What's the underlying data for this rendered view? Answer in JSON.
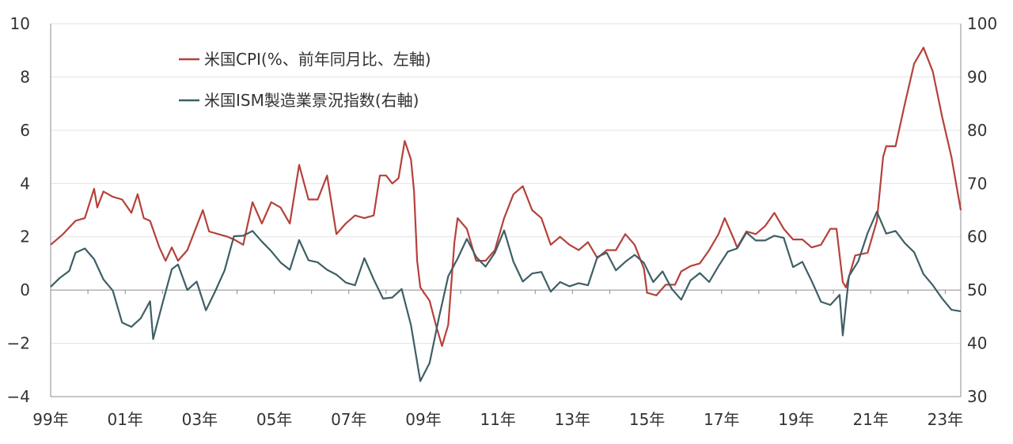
{
  "chart_data": {
    "type": "line",
    "x_start": "1999-01",
    "x_end": "2023-06",
    "x_tick_labels": [
      "99年",
      "01年",
      "03年",
      "05年",
      "07年",
      "09年",
      "11年",
      "13年",
      "15年",
      "17年",
      "19年",
      "21年",
      "23年"
    ],
    "x_tick_years": [
      1999,
      2001,
      2003,
      2005,
      2007,
      2009,
      2011,
      2013,
      2015,
      2017,
      2019,
      2021,
      2023
    ],
    "y_left": {
      "lim": [
        -4,
        10
      ],
      "ticks": [
        -4,
        -2,
        0,
        2,
        4,
        6,
        8,
        10
      ],
      "tick_labels": [
        "−4",
        "−2",
        "0",
        "2",
        "4",
        "6",
        "8",
        "10"
      ]
    },
    "y_right": {
      "lim": [
        30,
        100
      ],
      "ticks": [
        30,
        40,
        50,
        60,
        70,
        80,
        90,
        100
      ],
      "tick_labels": [
        "30",
        "40",
        "50",
        "60",
        "70",
        "80",
        "90",
        "100"
      ]
    },
    "grid": true,
    "legend_position": "top-left",
    "series": [
      {
        "name": "米国CPI(%、前年同月比、左軸)",
        "axis": "left",
        "color": "#b5413b",
        "points": [
          [
            "1999-01",
            1.7
          ],
          [
            "1999-05",
            2.1
          ],
          [
            "1999-09",
            2.6
          ],
          [
            "1999-12",
            2.7
          ],
          [
            "2000-03",
            3.8
          ],
          [
            "2000-04",
            3.1
          ],
          [
            "2000-06",
            3.7
          ],
          [
            "2000-09",
            3.5
          ],
          [
            "2000-12",
            3.4
          ],
          [
            "2001-03",
            2.9
          ],
          [
            "2001-05",
            3.6
          ],
          [
            "2001-07",
            2.7
          ],
          [
            "2001-09",
            2.6
          ],
          [
            "2001-12",
            1.6
          ],
          [
            "2002-02",
            1.1
          ],
          [
            "2002-04",
            1.6
          ],
          [
            "2002-06",
            1.1
          ],
          [
            "2002-09",
            1.5
          ],
          [
            "2002-12",
            2.4
          ],
          [
            "2003-02",
            3.0
          ],
          [
            "2003-04",
            2.2
          ],
          [
            "2003-07",
            2.1
          ],
          [
            "2003-10",
            2.0
          ],
          [
            "2003-12",
            1.9
          ],
          [
            "2004-03",
            1.7
          ],
          [
            "2004-06",
            3.3
          ],
          [
            "2004-09",
            2.5
          ],
          [
            "2004-12",
            3.3
          ],
          [
            "2005-03",
            3.1
          ],
          [
            "2005-06",
            2.5
          ],
          [
            "2005-09",
            4.7
          ],
          [
            "2005-12",
            3.4
          ],
          [
            "2006-03",
            3.4
          ],
          [
            "2006-06",
            4.3
          ],
          [
            "2006-09",
            2.1
          ],
          [
            "2006-12",
            2.5
          ],
          [
            "2007-03",
            2.8
          ],
          [
            "2007-06",
            2.7
          ],
          [
            "2007-09",
            2.8
          ],
          [
            "2007-11",
            4.3
          ],
          [
            "2008-01",
            4.3
          ],
          [
            "2008-03",
            4.0
          ],
          [
            "2008-05",
            4.2
          ],
          [
            "2008-07",
            5.6
          ],
          [
            "2008-09",
            4.9
          ],
          [
            "2008-10",
            3.7
          ],
          [
            "2008-11",
            1.1
          ],
          [
            "2008-12",
            0.1
          ],
          [
            "2009-03",
            -0.4
          ],
          [
            "2009-05",
            -1.3
          ],
          [
            "2009-07",
            -2.1
          ],
          [
            "2009-09",
            -1.3
          ],
          [
            "2009-11",
            1.8
          ],
          [
            "2009-12",
            2.7
          ],
          [
            "2010-03",
            2.3
          ],
          [
            "2010-06",
            1.1
          ],
          [
            "2010-09",
            1.1
          ],
          [
            "2010-12",
            1.5
          ],
          [
            "2011-03",
            2.7
          ],
          [
            "2011-06",
            3.6
          ],
          [
            "2011-09",
            3.9
          ],
          [
            "2011-12",
            3.0
          ],
          [
            "2012-03",
            2.7
          ],
          [
            "2012-06",
            1.7
          ],
          [
            "2012-09",
            2.0
          ],
          [
            "2012-12",
            1.7
          ],
          [
            "2013-03",
            1.5
          ],
          [
            "2013-06",
            1.8
          ],
          [
            "2013-09",
            1.2
          ],
          [
            "2013-12",
            1.5
          ],
          [
            "2014-03",
            1.5
          ],
          [
            "2014-06",
            2.1
          ],
          [
            "2014-09",
            1.7
          ],
          [
            "2014-12",
            0.8
          ],
          [
            "2015-01",
            -0.1
          ],
          [
            "2015-04",
            -0.2
          ],
          [
            "2015-07",
            0.2
          ],
          [
            "2015-10",
            0.2
          ],
          [
            "2015-12",
            0.7
          ],
          [
            "2016-03",
            0.9
          ],
          [
            "2016-06",
            1.0
          ],
          [
            "2016-09",
            1.5
          ],
          [
            "2016-12",
            2.1
          ],
          [
            "2017-02",
            2.7
          ],
          [
            "2017-05",
            1.9
          ],
          [
            "2017-06",
            1.6
          ],
          [
            "2017-09",
            2.2
          ],
          [
            "2017-12",
            2.1
          ],
          [
            "2018-03",
            2.4
          ],
          [
            "2018-06",
            2.9
          ],
          [
            "2018-09",
            2.3
          ],
          [
            "2018-12",
            1.9
          ],
          [
            "2019-03",
            1.9
          ],
          [
            "2019-06",
            1.6
          ],
          [
            "2019-09",
            1.7
          ],
          [
            "2019-12",
            2.3
          ],
          [
            "2020-02",
            2.3
          ],
          [
            "2020-04",
            0.3
          ],
          [
            "2020-05",
            0.1
          ],
          [
            "2020-08",
            1.3
          ],
          [
            "2020-12",
            1.4
          ],
          [
            "2021-03",
            2.6
          ],
          [
            "2021-05",
            5.0
          ],
          [
            "2021-06",
            5.4
          ],
          [
            "2021-09",
            5.4
          ],
          [
            "2021-12",
            7.0
          ],
          [
            "2022-03",
            8.5
          ],
          [
            "2022-06",
            9.1
          ],
          [
            "2022-09",
            8.2
          ],
          [
            "2022-12",
            6.5
          ],
          [
            "2023-03",
            5.0
          ],
          [
            "2023-06",
            3.0
          ]
        ]
      },
      {
        "name": "米国ISM製造業景況指数(右軸)",
        "axis": "right",
        "color": "#3e5f66",
        "points": [
          [
            "1999-01",
            50.6
          ],
          [
            "1999-04",
            52.3
          ],
          [
            "1999-07",
            53.6
          ],
          [
            "1999-09",
            57.0
          ],
          [
            "1999-12",
            57.8
          ],
          [
            "2000-03",
            55.8
          ],
          [
            "2000-06",
            52.0
          ],
          [
            "2000-09",
            49.9
          ],
          [
            "2000-12",
            43.9
          ],
          [
            "2001-03",
            43.1
          ],
          [
            "2001-06",
            44.7
          ],
          [
            "2001-09",
            47.9
          ],
          [
            "2001-10",
            40.8
          ],
          [
            "2002-01",
            47.5
          ],
          [
            "2002-04",
            53.9
          ],
          [
            "2002-06",
            54.8
          ],
          [
            "2002-09",
            50.0
          ],
          [
            "2002-12",
            51.6
          ],
          [
            "2003-03",
            46.2
          ],
          [
            "2003-06",
            49.8
          ],
          [
            "2003-09",
            53.7
          ],
          [
            "2003-12",
            60.1
          ],
          [
            "2004-03",
            60.2
          ],
          [
            "2004-06",
            61.1
          ],
          [
            "2004-09",
            59.1
          ],
          [
            "2004-12",
            57.3
          ],
          [
            "2005-03",
            55.2
          ],
          [
            "2005-06",
            53.8
          ],
          [
            "2005-09",
            59.4
          ],
          [
            "2005-12",
            55.6
          ],
          [
            "2006-03",
            55.2
          ],
          [
            "2006-06",
            53.8
          ],
          [
            "2006-09",
            52.9
          ],
          [
            "2006-12",
            51.4
          ],
          [
            "2007-03",
            50.9
          ],
          [
            "2007-06",
            56.0
          ],
          [
            "2007-09",
            52.0
          ],
          [
            "2007-12",
            48.4
          ],
          [
            "2008-03",
            48.6
          ],
          [
            "2008-06",
            50.2
          ],
          [
            "2008-09",
            43.4
          ],
          [
            "2008-12",
            32.9
          ],
          [
            "2009-03",
            36.3
          ],
          [
            "2009-06",
            44.8
          ],
          [
            "2009-09",
            52.6
          ],
          [
            "2009-12",
            55.9
          ],
          [
            "2010-03",
            59.6
          ],
          [
            "2010-06",
            56.2
          ],
          [
            "2010-09",
            54.4
          ],
          [
            "2010-12",
            57.0
          ],
          [
            "2011-03",
            61.2
          ],
          [
            "2011-06",
            55.3
          ],
          [
            "2011-09",
            51.6
          ],
          [
            "2011-12",
            53.1
          ],
          [
            "2012-03",
            53.4
          ],
          [
            "2012-06",
            49.7
          ],
          [
            "2012-09",
            51.5
          ],
          [
            "2012-12",
            50.7
          ],
          [
            "2013-03",
            51.3
          ],
          [
            "2013-06",
            50.9
          ],
          [
            "2013-09",
            56.2
          ],
          [
            "2013-12",
            57.0
          ],
          [
            "2014-03",
            53.7
          ],
          [
            "2014-06",
            55.3
          ],
          [
            "2014-09",
            56.6
          ],
          [
            "2014-12",
            55.1
          ],
          [
            "2015-03",
            51.5
          ],
          [
            "2015-06",
            53.5
          ],
          [
            "2015-09",
            50.2
          ],
          [
            "2015-12",
            48.2
          ],
          [
            "2016-03",
            51.8
          ],
          [
            "2016-06",
            53.2
          ],
          [
            "2016-09",
            51.5
          ],
          [
            "2016-12",
            54.5
          ],
          [
            "2017-03",
            57.2
          ],
          [
            "2017-06",
            57.8
          ],
          [
            "2017-09",
            60.8
          ],
          [
            "2017-12",
            59.3
          ],
          [
            "2018-03",
            59.3
          ],
          [
            "2018-06",
            60.2
          ],
          [
            "2018-09",
            59.8
          ],
          [
            "2018-12",
            54.3
          ],
          [
            "2019-03",
            55.3
          ],
          [
            "2019-06",
            51.7
          ],
          [
            "2019-09",
            47.8
          ],
          [
            "2019-12",
            47.2
          ],
          [
            "2020-03",
            49.1
          ],
          [
            "2020-04",
            41.5
          ],
          [
            "2020-06",
            52.6
          ],
          [
            "2020-09",
            55.4
          ],
          [
            "2020-12",
            60.7
          ],
          [
            "2021-03",
            64.7
          ],
          [
            "2021-06",
            60.6
          ],
          [
            "2021-09",
            61.1
          ],
          [
            "2021-12",
            58.8
          ],
          [
            "2022-03",
            57.1
          ],
          [
            "2022-06",
            53.0
          ],
          [
            "2022-09",
            50.9
          ],
          [
            "2022-12",
            48.4
          ],
          [
            "2023-03",
            46.3
          ],
          [
            "2023-06",
            46.0
          ]
        ]
      }
    ]
  }
}
